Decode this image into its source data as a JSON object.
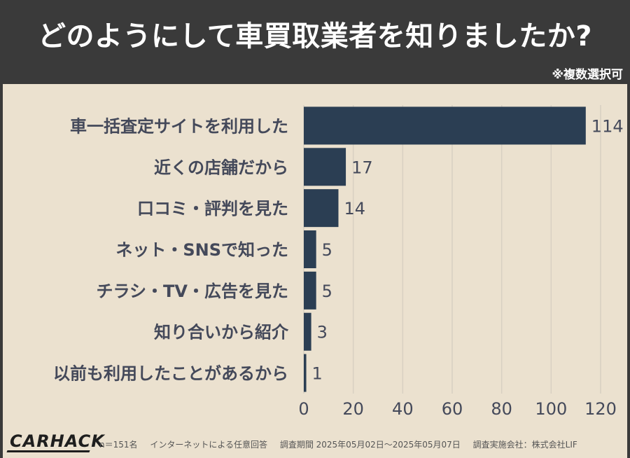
{
  "header": {
    "title": "どのようにして車買取業者を知りましたか?",
    "note": "※複数選択可"
  },
  "colors": {
    "background": "#ebe1cf",
    "header": "#3a3a3a",
    "bar": "#2b3e53",
    "label": "#44495a",
    "grid": "#d8d0c2"
  },
  "chart_data": {
    "type": "bar",
    "orientation": "horizontal",
    "categories": [
      "車一括査定サイトを利用した",
      "近くの店舗だから",
      "口コミ・評判を見た",
      "ネット・SNSで知った",
      "チラシ・TV・広告を見た",
      "知り合いから紹介",
      "以前も利用したことがあるから"
    ],
    "values": [
      114,
      17,
      14,
      5,
      5,
      3,
      1
    ],
    "xlim": [
      0,
      120
    ],
    "xticks": [
      0,
      20,
      40,
      60,
      80,
      100,
      120
    ],
    "grid": true,
    "data_labels": true
  },
  "footer": {
    "logo": "CARHACK",
    "sample": "n＝151名",
    "method": "インターネットによる任意回答",
    "period": "調査期間 2025年05月02日～2025年05月07日",
    "company": "調査実施会社：株式会社LIF"
  }
}
